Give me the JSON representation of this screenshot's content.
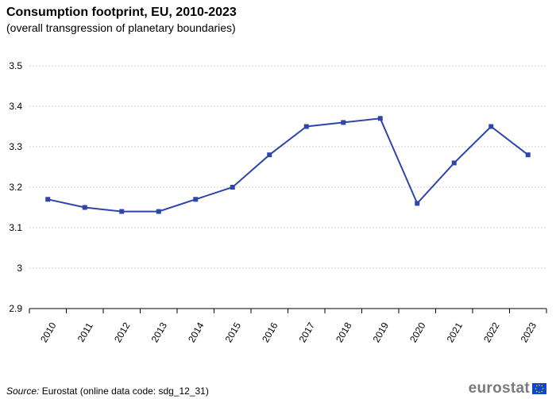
{
  "title": "Consumption footprint, EU, 2010-2023",
  "subtitle": "(overall transgression of planetary boundaries)",
  "source_label": "Source:",
  "source_text": "Eurostat (online data code: sdg_12_31)",
  "logo_text": "eurostat",
  "colors": {
    "line": "#2f45a8",
    "grid": "#cfcfcf",
    "axis": "#000000"
  },
  "chart_data": {
    "type": "line",
    "title": "Consumption footprint, EU, 2010-2023",
    "subtitle": "(overall transgression of planetary boundaries)",
    "x": [
      "2010",
      "2011",
      "2012",
      "2013",
      "2014",
      "2015",
      "2016",
      "2017",
      "2018",
      "2019",
      "2020",
      "2021",
      "2022",
      "2023"
    ],
    "series": [
      {
        "values": [
          3.17,
          3.15,
          3.14,
          3.14,
          3.17,
          3.2,
          3.28,
          3.35,
          3.36,
          3.37,
          3.16,
          3.26,
          3.35,
          3.28
        ]
      }
    ],
    "yticks": [
      "2.9",
      "3",
      "3.1",
      "3.2",
      "3.3",
      "3.4",
      "3.5"
    ],
    "ylim": [
      2.9,
      3.5
    ],
    "grid": true,
    "legend": "none"
  }
}
